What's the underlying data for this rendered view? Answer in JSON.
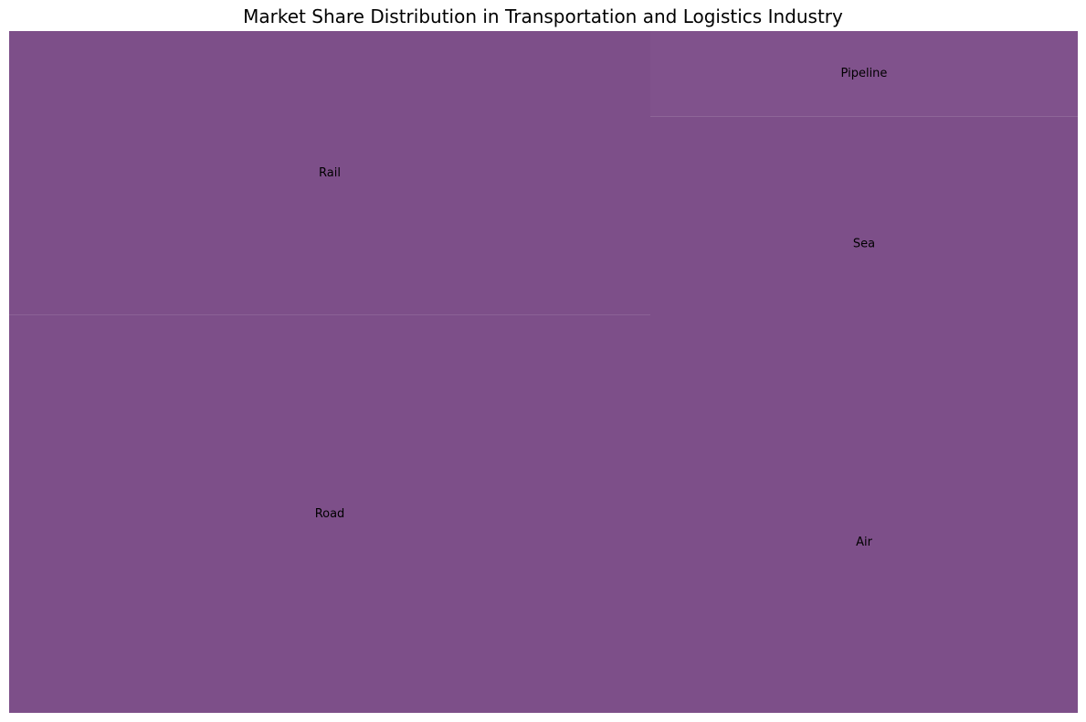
{
  "chart_data": {
    "type": "treemap",
    "title": "Market Share Distribution in Transportation and Logistics Industry",
    "tiles": [
      {
        "label": "Road",
        "value": 35,
        "color": "#7d4f89"
      },
      {
        "label": "Rail",
        "value": 25,
        "color": "#7d4f89"
      },
      {
        "label": "Air",
        "value": 20,
        "color": "#7d4f89"
      },
      {
        "label": "Sea",
        "value": 15,
        "color": "#7d4f89"
      },
      {
        "label": "Pipeline",
        "value": 5,
        "color": "#80528c"
      }
    ]
  }
}
